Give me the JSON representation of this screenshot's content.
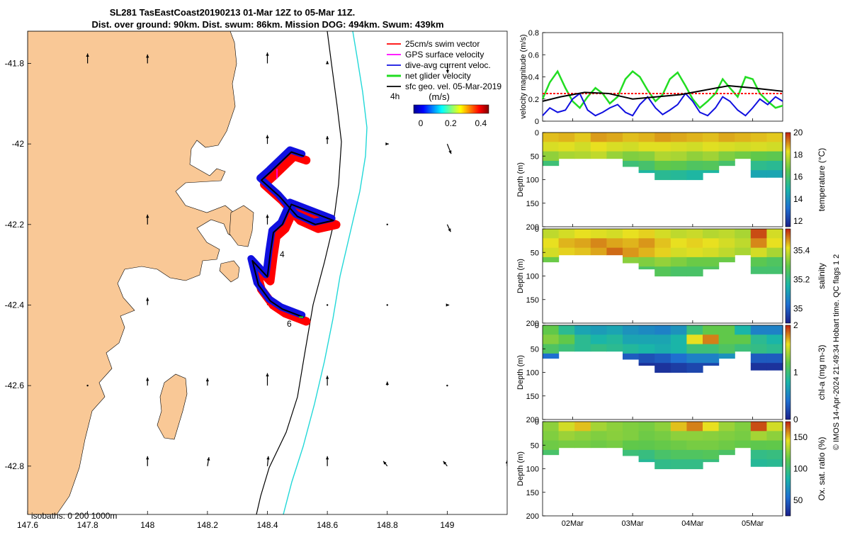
{
  "title": {
    "line1": "SL281 TasEastCoast20190213 01-Mar 12Z to 05-Mar 11Z.",
    "line2": "Dist. over ground: 90km. Dist. swum: 86km. Mission DOG: 494km. Swum: 439km"
  },
  "colors": {
    "land": "#f9c896",
    "swim": "#ff0000",
    "gps": "#ff00ff",
    "current": "#1010e0",
    "net": "#22dd22",
    "sfc": "#000000",
    "isobath200": "#000000",
    "isobath1000": "#22d8d8"
  },
  "chart_data": [
    {
      "type": "map",
      "x_ticks": [
        "147.6",
        "147.8",
        "148",
        "148.2",
        "148.4",
        "148.6",
        "148.8",
        "149"
      ],
      "y_ticks": [
        "-41.8",
        "-42",
        "-42.2",
        "-42.4",
        "-42.6",
        "-42.8"
      ],
      "xlim": [
        147.6,
        149.2
      ],
      "ylim": [
        -42.92,
        -41.72
      ],
      "legend": [
        {
          "label": "25cm/s swim vector",
          "color": "#ff0000"
        },
        {
          "label": "GPS surface velocity",
          "color": "#ff00ff"
        },
        {
          "label": "dive-avg current veloc.",
          "color": "#1010e0"
        },
        {
          "label": "net glider velocity",
          "color": "#22dd22"
        },
        {
          "label": "sfc geo. vel. 05-Mar-2019",
          "color": "#000000"
        }
      ],
      "legend_note": "4h",
      "colorbar": {
        "label": "(m/s)",
        "ticks": [
          "0",
          "0.2",
          "0.4"
        ],
        "range": [
          0,
          0.5
        ]
      },
      "track_labels": [
        "4",
        "6"
      ],
      "isobath_label": "isobaths: 0   200  1000m",
      "glider_track": [
        [
          148.52,
          -42.03
        ],
        [
          148.48,
          -42.02
        ],
        [
          148.41,
          -42.07
        ],
        [
          148.38,
          -42.09
        ],
        [
          148.44,
          -42.13
        ],
        [
          148.5,
          -42.18
        ],
        [
          148.56,
          -42.2
        ],
        [
          148.62,
          -42.19
        ],
        [
          148.55,
          -42.17
        ],
        [
          148.48,
          -42.15
        ],
        [
          148.45,
          -42.2
        ],
        [
          148.42,
          -42.22
        ],
        [
          148.41,
          -42.27
        ],
        [
          148.4,
          -42.33
        ],
        [
          148.35,
          -42.29
        ],
        [
          148.37,
          -42.35
        ],
        [
          148.41,
          -42.39
        ],
        [
          148.45,
          -42.41
        ],
        [
          148.52,
          -42.43
        ]
      ],
      "surface_vectors": [
        {
          "lon": 147.8,
          "lat": -41.8,
          "u": 0.0,
          "v": 0.2
        },
        {
          "lon": 148.0,
          "lat": -41.8,
          "u": 0.0,
          "v": 0.18
        },
        {
          "lon": 148.4,
          "lat": -41.8,
          "u": 0.0,
          "v": 0.22
        },
        {
          "lon": 148.6,
          "lat": -41.8,
          "u": 0.0,
          "v": 0.05
        },
        {
          "lon": 149.0,
          "lat": -41.8,
          "u": 0.01,
          "v": -0.2
        },
        {
          "lon": 148.4,
          "lat": -42.0,
          "u": 0.0,
          "v": 0.18
        },
        {
          "lon": 148.6,
          "lat": -42.0,
          "u": 0.0,
          "v": 0.16
        },
        {
          "lon": 148.8,
          "lat": -42.0,
          "u": 0.03,
          "v": 0.0
        },
        {
          "lon": 149.0,
          "lat": -42.0,
          "u": 0.08,
          "v": -0.2
        },
        {
          "lon": 148.0,
          "lat": -42.2,
          "u": 0.0,
          "v": 0.2
        },
        {
          "lon": 148.4,
          "lat": -42.2,
          "u": 0.0,
          "v": 0.2
        },
        {
          "lon": 148.8,
          "lat": -42.2,
          "u": 0.02,
          "v": 0.0
        },
        {
          "lon": 149.0,
          "lat": -42.2,
          "u": 0.07,
          "v": -0.15
        },
        {
          "lon": 148.0,
          "lat": -42.4,
          "u": 0.0,
          "v": 0.15
        },
        {
          "lon": 148.4,
          "lat": -42.4,
          "u": 0.0,
          "v": 0.2
        },
        {
          "lon": 148.6,
          "lat": -42.4,
          "u": 0.0,
          "v": 0.0
        },
        {
          "lon": 148.8,
          "lat": -42.4,
          "u": 0.0,
          "v": 0.0
        },
        {
          "lon": 149.0,
          "lat": -42.4,
          "u": 0.04,
          "v": 0.0
        },
        {
          "lon": 147.8,
          "lat": -42.6,
          "u": 0.0,
          "v": 0.0
        },
        {
          "lon": 148.0,
          "lat": -42.6,
          "u": 0.0,
          "v": 0.16
        },
        {
          "lon": 148.2,
          "lat": -42.6,
          "u": 0.0,
          "v": 0.15
        },
        {
          "lon": 148.4,
          "lat": -42.6,
          "u": 0.0,
          "v": 0.25
        },
        {
          "lon": 148.6,
          "lat": -42.6,
          "u": 0.0,
          "v": 0.2
        },
        {
          "lon": 148.8,
          "lat": -42.6,
          "u": 0.0,
          "v": 0.08
        },
        {
          "lon": 149.0,
          "lat": -42.6,
          "u": 0.0,
          "v": 0.0
        },
        {
          "lon": 148.0,
          "lat": -42.8,
          "u": 0.0,
          "v": 0.2
        },
        {
          "lon": 148.2,
          "lat": -42.8,
          "u": 0.03,
          "v": 0.18
        },
        {
          "lon": 148.4,
          "lat": -42.8,
          "u": 0.02,
          "v": 0.2
        },
        {
          "lon": 148.6,
          "lat": -42.8,
          "u": 0.0,
          "v": 0.2
        },
        {
          "lon": 148.8,
          "lat": -42.8,
          "u": -0.08,
          "v": 0.1
        },
        {
          "lon": 149.0,
          "lat": -42.8,
          "u": -0.08,
          "v": 0.1
        },
        {
          "lon": 149.2,
          "lat": -42.8,
          "u": 0.0,
          "v": 0.12
        }
      ]
    },
    {
      "type": "line",
      "ylabel": "velocity magnitude (m/s)",
      "ylim": [
        0,
        0.8
      ],
      "yticks": [
        "0",
        "0.2",
        "0.4",
        "0.6",
        "0.8"
      ],
      "xlim": [
        1.5,
        5.5
      ],
      "series": [
        {
          "name": "net glider velocity",
          "color": "#22dd22",
          "x": [
            1.5,
            1.62,
            1.75,
            1.88,
            2.0,
            2.12,
            2.25,
            2.38,
            2.5,
            2.62,
            2.75,
            2.88,
            3.0,
            3.12,
            3.25,
            3.38,
            3.5,
            3.62,
            3.75,
            3.88,
            4.0,
            4.12,
            4.25,
            4.38,
            4.5,
            4.62,
            4.75,
            4.88,
            5.0,
            5.12,
            5.25,
            5.38,
            5.5
          ],
          "y": [
            0.2,
            0.35,
            0.45,
            0.3,
            0.18,
            0.12,
            0.22,
            0.3,
            0.25,
            0.16,
            0.22,
            0.38,
            0.45,
            0.4,
            0.28,
            0.18,
            0.24,
            0.38,
            0.44,
            0.32,
            0.2,
            0.12,
            0.18,
            0.25,
            0.38,
            0.3,
            0.22,
            0.4,
            0.38,
            0.25,
            0.18,
            0.12,
            0.14
          ]
        },
        {
          "name": "dive-avg current veloc.",
          "color": "#1010e0",
          "x": [
            1.5,
            1.62,
            1.75,
            1.88,
            2.0,
            2.12,
            2.25,
            2.38,
            2.5,
            2.62,
            2.75,
            2.88,
            3.0,
            3.12,
            3.25,
            3.38,
            3.5,
            3.62,
            3.75,
            3.88,
            4.0,
            4.12,
            4.25,
            4.38,
            4.5,
            4.62,
            4.75,
            4.88,
            5.0,
            5.12,
            5.25,
            5.38,
            5.5
          ],
          "y": [
            0.05,
            0.12,
            0.08,
            0.1,
            0.2,
            0.25,
            0.1,
            0.05,
            0.08,
            0.12,
            0.15,
            0.08,
            0.05,
            0.15,
            0.22,
            0.12,
            0.06,
            0.1,
            0.15,
            0.25,
            0.18,
            0.08,
            0.05,
            0.12,
            0.22,
            0.18,
            0.1,
            0.05,
            0.12,
            0.2,
            0.15,
            0.22,
            0.18
          ]
        },
        {
          "name": "25cm/s swim vector",
          "color": "#ff0000",
          "x": [
            1.5,
            5.5
          ],
          "y": [
            0.25,
            0.25
          ]
        },
        {
          "name": "sfc geo. vel.",
          "color": "#000000",
          "x": [
            1.5,
            1.8,
            2.2,
            2.6,
            3.0,
            3.4,
            3.8,
            4.2,
            4.6,
            5.0,
            5.5
          ],
          "y": [
            0.18,
            0.22,
            0.26,
            0.25,
            0.2,
            0.22,
            0.24,
            0.28,
            0.32,
            0.3,
            0.27
          ]
        }
      ]
    },
    {
      "type": "heatmap",
      "ylabel": "Depth (m)",
      "cbar_label": "temperature (°C)",
      "clim": [
        11.5,
        20
      ],
      "cbar_ticks": [
        "12",
        "14",
        "16",
        "18",
        "20"
      ],
      "values": [
        [
          18.6,
          18.7,
          18.5,
          18.9,
          18.8,
          18.6,
          18.7,
          18.9,
          18.8,
          18.7,
          18.6,
          18.8,
          18.7,
          18.6,
          18.5
        ],
        [
          18.1,
          18.2,
          18.0,
          18.3,
          18.1,
          18.0,
          18.2,
          18.2,
          18.1,
          18.0,
          18.2,
          18.1,
          18.0,
          18.1,
          18.0
        ],
        [
          17.2,
          17.5,
          17.6,
          17.8,
          17.3,
          17.0,
          17.1,
          17.6,
          17.5,
          17.2,
          17.4,
          17.0,
          16.8,
          16.6,
          16.5
        ],
        [
          15.8,
          16.5,
          16.9,
          17.0,
          16.4,
          15.8,
          16.0,
          16.6,
          16.5,
          16.2,
          16.3,
          16.0,
          15.6,
          15.4,
          15.3
        ],
        [
          15.2,
          15.6,
          15.8,
          15.5,
          15.0,
          14.8,
          15.0,
          15.3,
          15.2,
          15.0,
          15.0,
          14.8,
          14.6,
          14.5,
          14.5
        ]
      ],
      "bottom_depth": [
        70,
        55,
        55,
        55,
        55,
        72,
        85,
        100,
        100,
        100,
        85,
        70,
        55,
        95,
        95
      ]
    },
    {
      "type": "heatmap",
      "ylabel": "Depth (m)",
      "cbar_label": "salinity",
      "clim": [
        34.9,
        35.55
      ],
      "cbar_ticks": [
        "35",
        "35.2",
        "35.4"
      ],
      "values": [
        [
          35.38,
          35.4,
          35.42,
          35.41,
          35.4,
          35.42,
          35.43,
          35.4,
          35.38,
          35.39,
          35.37,
          35.38,
          35.36,
          35.52,
          35.4
        ],
        [
          35.42,
          35.45,
          35.46,
          35.48,
          35.46,
          35.45,
          35.47,
          35.44,
          35.42,
          35.43,
          35.42,
          35.4,
          35.38,
          35.48,
          35.42
        ],
        [
          35.4,
          35.43,
          35.44,
          35.46,
          35.5,
          35.47,
          35.45,
          35.43,
          35.4,
          35.41,
          35.4,
          35.38,
          35.36,
          35.4,
          35.36
        ],
        [
          35.3,
          35.34,
          35.36,
          35.38,
          35.37,
          35.33,
          35.32,
          35.34,
          35.32,
          35.3,
          35.3,
          35.3,
          35.3,
          35.28,
          35.26
        ],
        [
          35.26,
          35.28,
          35.3,
          35.3,
          35.28,
          35.26,
          35.25,
          35.27,
          35.25,
          35.25,
          35.26,
          35.25,
          35.25,
          35.24,
          35.24
        ]
      ],
      "bottom_depth": [
        70,
        55,
        55,
        55,
        55,
        72,
        85,
        100,
        100,
        100,
        85,
        70,
        55,
        95,
        95
      ]
    },
    {
      "type": "heatmap",
      "ylabel": "Depth (m)",
      "cbar_label": "chl-a (mg m-3)",
      "clim": [
        0,
        2
      ],
      "cbar_ticks": [
        "0",
        "1",
        "2"
      ],
      "values": [
        [
          1.2,
          0.9,
          0.7,
          0.65,
          0.7,
          0.6,
          0.55,
          0.5,
          0.6,
          1.0,
          1.2,
          1.2,
          0.8,
          0.5,
          0.5
        ],
        [
          1.3,
          1.2,
          0.9,
          0.8,
          0.85,
          0.7,
          0.7,
          0.7,
          0.8,
          1.6,
          1.8,
          1.2,
          1.2,
          0.9,
          0.8
        ],
        [
          1.1,
          1.0,
          0.9,
          0.95,
          0.9,
          0.85,
          0.8,
          0.75,
          0.8,
          1.0,
          1.0,
          1.1,
          1.0,
          0.95,
          0.9
        ],
        [
          0.4,
          0.5,
          0.55,
          0.6,
          0.5,
          0.3,
          0.25,
          0.3,
          0.4,
          0.5,
          0.5,
          0.6,
          0.5,
          0.3,
          0.3
        ],
        [
          0.1,
          0.15,
          0.2,
          0.2,
          0.15,
          0.1,
          0.1,
          0.1,
          0.15,
          0.2,
          0.2,
          0.2,
          0.2,
          0.1,
          0.1
        ]
      ],
      "bottom_depth": [
        70,
        55,
        55,
        55,
        55,
        72,
        85,
        100,
        100,
        100,
        85,
        70,
        55,
        95,
        95
      ]
    },
    {
      "type": "heatmap",
      "ylabel": "Depth (m)",
      "cbar_label": "Ox. sat. ratio (%)",
      "clim": [
        25,
        175
      ],
      "cbar_ticks": [
        "50",
        "100",
        "150"
      ],
      "values": [
        [
          125,
          140,
          150,
          130,
          125,
          122,
          120,
          125,
          150,
          160,
          145,
          128,
          122,
          168,
          140
        ],
        [
          122,
          128,
          125,
          122,
          124,
          122,
          118,
          120,
          125,
          125,
          124,
          122,
          120,
          130,
          125
        ],
        [
          118,
          120,
          120,
          118,
          120,
          115,
          114,
          116,
          118,
          120,
          120,
          118,
          116,
          114,
          115
        ],
        [
          105,
          112,
          115,
          110,
          110,
          100,
          98,
          105,
          108,
          108,
          110,
          106,
          104,
          96,
          98
        ],
        [
          95,
          100,
          102,
          100,
          98,
          92,
          90,
          95,
          96,
          96,
          98,
          95,
          95,
          90,
          92
        ]
      ],
      "bottom_depth": [
        70,
        55,
        55,
        55,
        55,
        72,
        85,
        100,
        100,
        100,
        85,
        70,
        55,
        95,
        95
      ]
    }
  ],
  "depth_axis": {
    "ticks": [
      "0",
      "50",
      "100",
      "150",
      "200"
    ],
    "ylim": [
      0,
      200
    ]
  },
  "time_axis": {
    "ticks": [
      "02Mar",
      "03Mar",
      "04Mar",
      "05Mar"
    ],
    "positions": [
      2,
      3,
      4,
      5
    ]
  },
  "side_note": "© IMOS 14-Apr-2024 21:49:34 Hobart time. QC flags 1  2"
}
